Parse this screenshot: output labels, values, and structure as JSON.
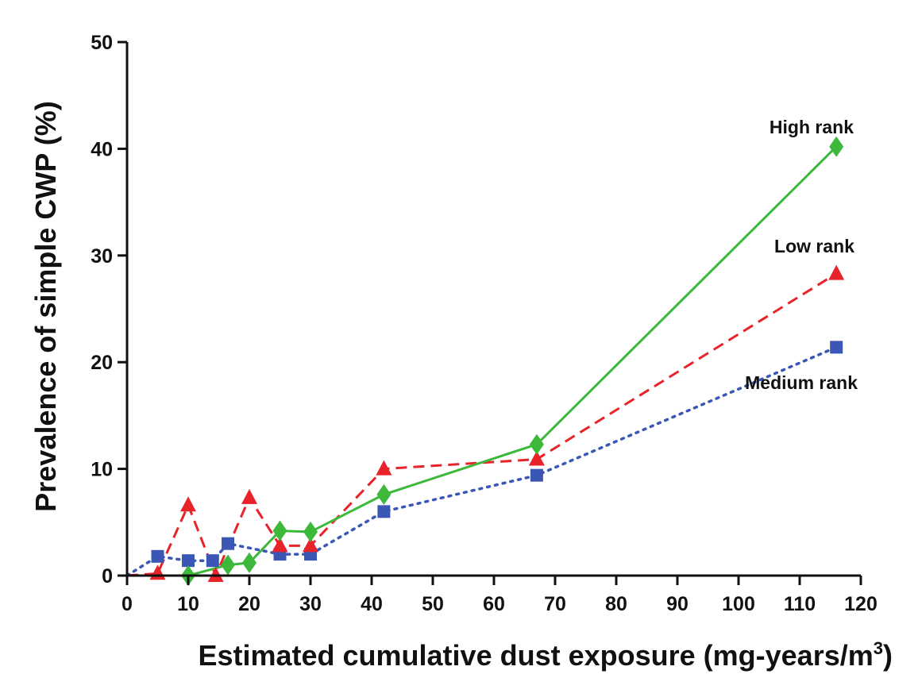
{
  "chart_data": {
    "type": "line",
    "title": "",
    "xlabel": "Estimated cumulative dust exposure (mg-years/m",
    "xlabel_superscript": "3",
    "xlabel_suffix": ")",
    "ylabel": "Prevalence of simple CWP (%)",
    "xlim": [
      0,
      120
    ],
    "ylim": [
      0,
      50
    ],
    "x_ticks": [
      0,
      10,
      20,
      30,
      40,
      50,
      60,
      70,
      80,
      90,
      100,
      110,
      120
    ],
    "y_ticks": [
      0,
      10,
      20,
      30,
      40,
      50
    ],
    "grid": false,
    "legend": "none (series labeled directly on plot)",
    "series": [
      {
        "name": "High rank",
        "color": "#3cb83a",
        "line_style": "solid",
        "marker": "diamond",
        "points": [
          [
            0,
            0
          ],
          [
            10,
            0
          ],
          [
            16.5,
            1.0
          ],
          [
            20,
            1.2
          ],
          [
            25,
            4.2
          ],
          [
            30,
            4.1
          ],
          [
            42,
            7.6
          ],
          [
            67,
            12.3
          ],
          [
            116,
            40.2
          ]
        ]
      },
      {
        "name": "Low rank",
        "color": "#e8232a",
        "line_style": "dashed",
        "marker": "triangle",
        "points": [
          [
            0,
            0
          ],
          [
            5,
            0.2
          ],
          [
            10,
            6.6
          ],
          [
            14.5,
            0
          ],
          [
            20,
            7.3
          ],
          [
            25,
            2.8
          ],
          [
            30,
            2.8
          ],
          [
            42,
            10.0
          ],
          [
            67,
            10.9
          ],
          [
            116,
            28.3
          ]
        ]
      },
      {
        "name": "Medium rank",
        "color": "#3a57b6",
        "line_style": "dotted",
        "marker": "square",
        "points": [
          [
            0,
            0
          ],
          [
            5,
            1.8
          ],
          [
            10,
            1.4
          ],
          [
            14,
            1.4
          ],
          [
            16.5,
            3.0
          ],
          [
            25,
            2.0
          ],
          [
            30,
            2.0
          ],
          [
            42,
            6.0
          ],
          [
            67,
            9.4
          ],
          [
            116,
            21.4
          ]
        ]
      }
    ]
  }
}
